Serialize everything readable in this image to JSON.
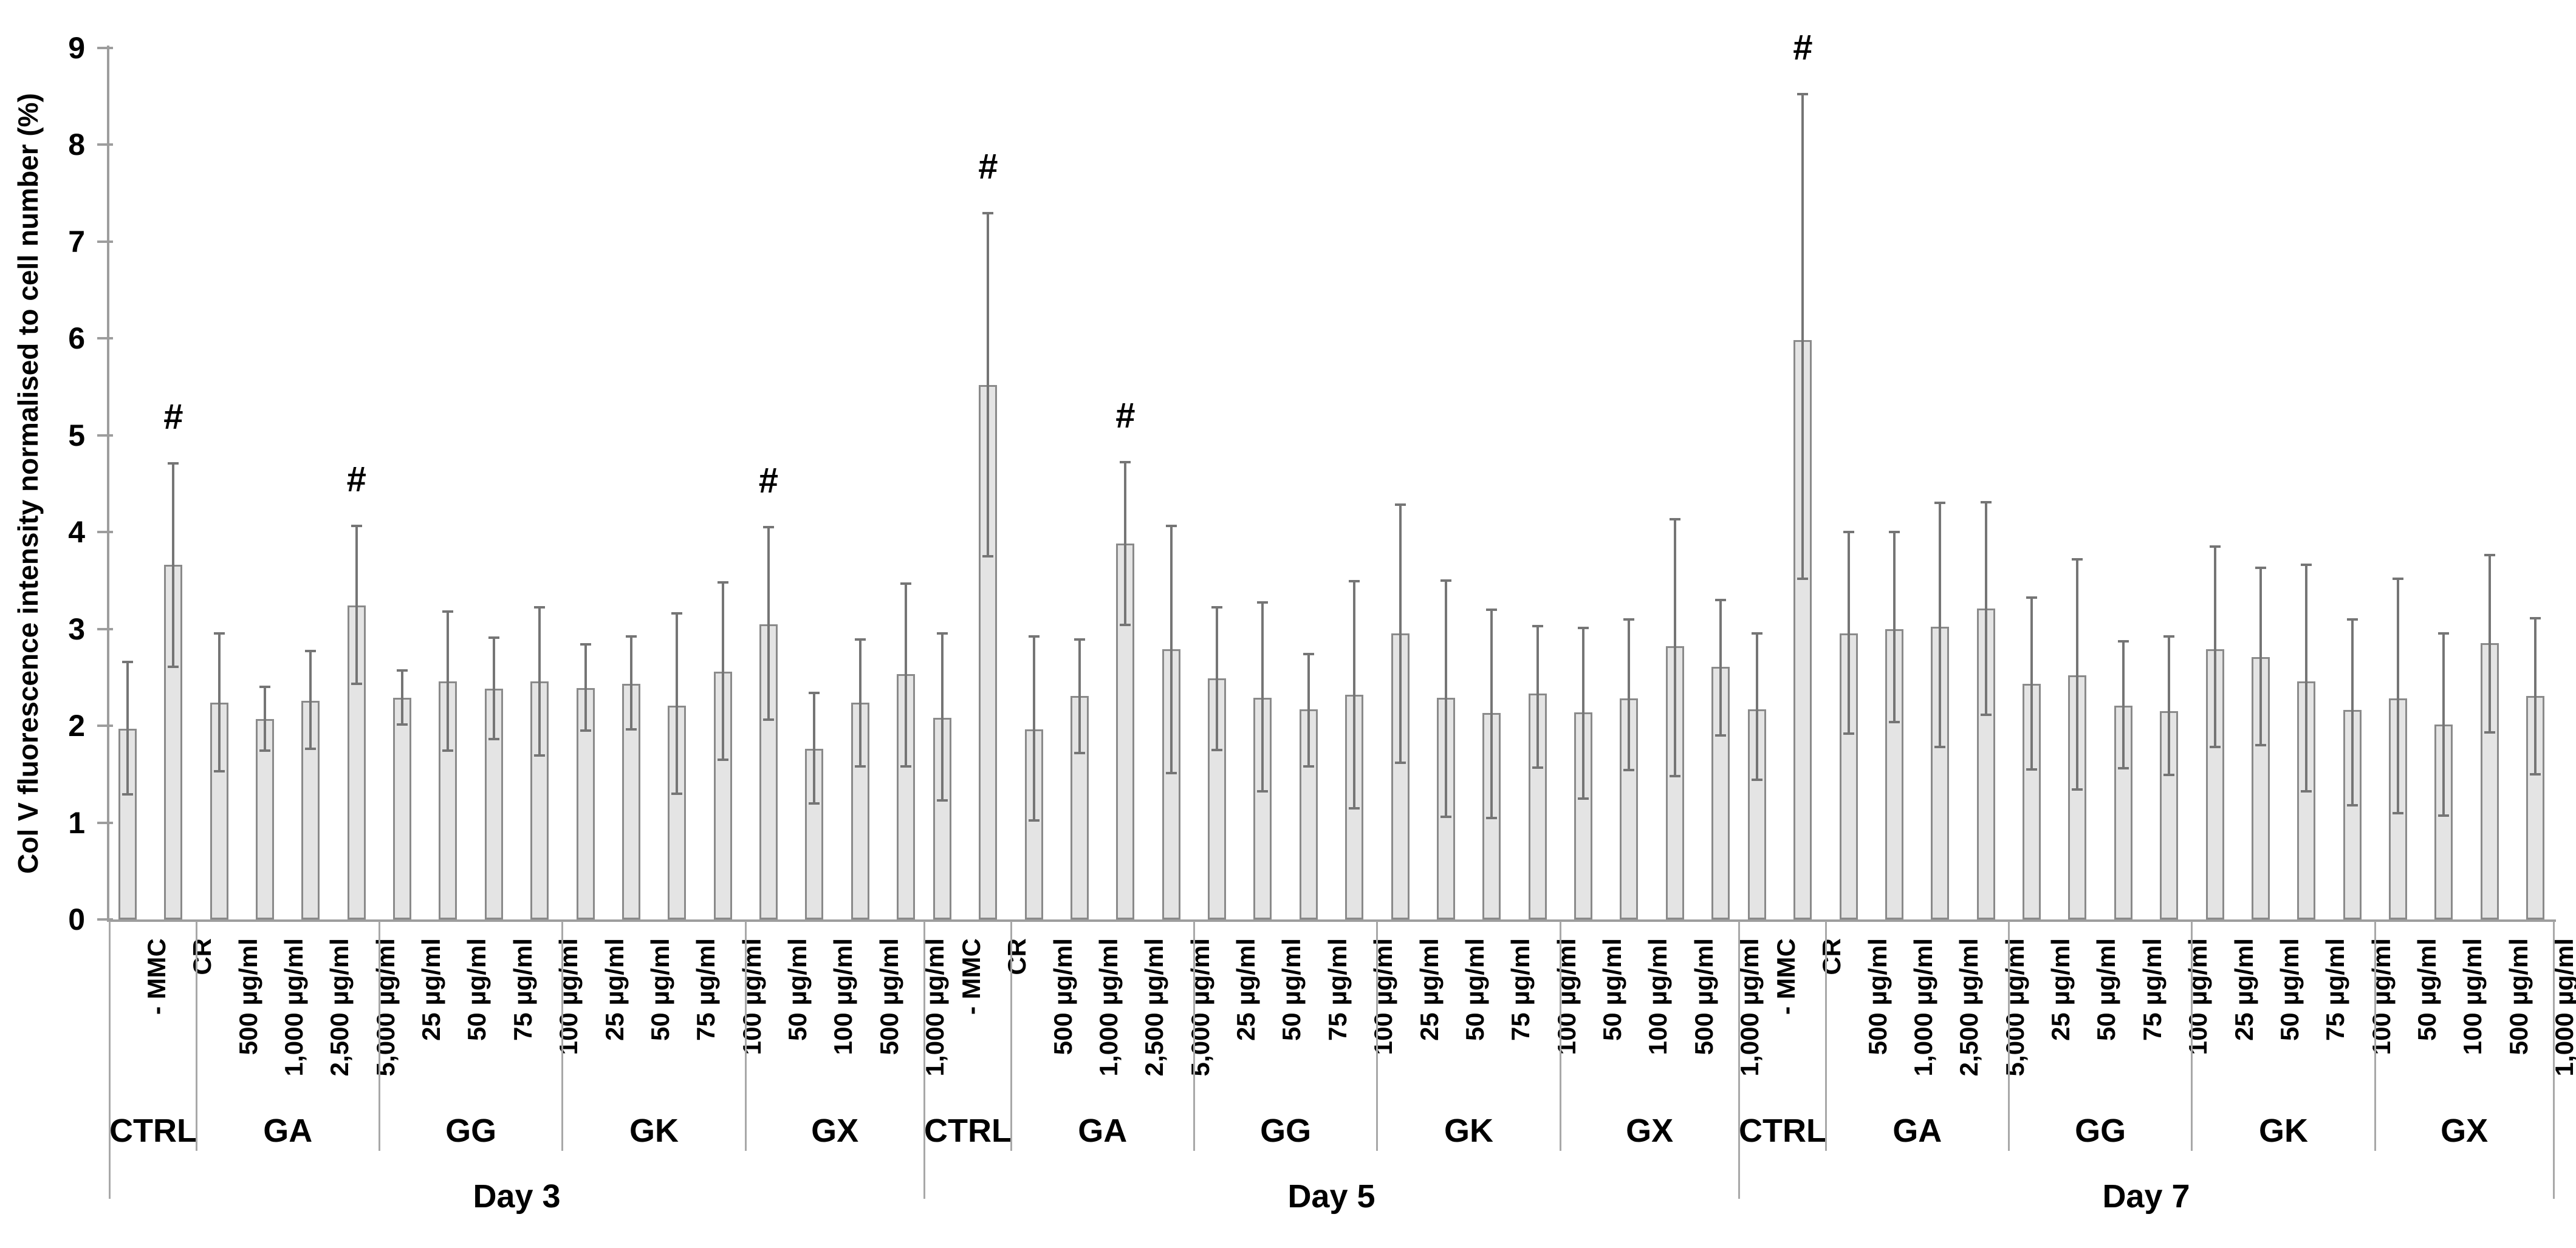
{
  "chart_data": {
    "type": "bar",
    "title": "",
    "xlabel": "",
    "grid": false,
    "legend": "none",
    "significance_symbol": "#",
    "y_axis": {
      "title": "Col V fluorescence intensity normalised to cell number (%)",
      "min": 0,
      "max": 9,
      "tick_step": 1,
      "tick_labels": [
        "0",
        "1",
        "2",
        "3",
        "4",
        "5",
        "6",
        "7",
        "8",
        "9"
      ]
    },
    "colors": {
      "bar_fill": "#e4e4e4",
      "bar_border": "#8a8a8a",
      "error_bar": "#757575",
      "axis": "#9d9d9d",
      "separator": "#a8a8a8",
      "text": "#000000"
    },
    "days": [
      {
        "label": "Day 3",
        "groups": [
          {
            "label": "CTRL",
            "bars": [
              {
                "label": "- MMC",
                "value": 1.97,
                "err_lo": 1.29,
                "err_hi": 2.66,
                "sig": false
              },
              {
                "label": "CR",
                "value": 3.66,
                "err_lo": 2.61,
                "err_hi": 4.71,
                "sig": true
              }
            ]
          },
          {
            "label": "GA",
            "bars": [
              {
                "label": "500 µg/ml",
                "value": 2.24,
                "err_lo": 1.53,
                "err_hi": 2.95,
                "sig": false
              },
              {
                "label": "1,000 µg/ml",
                "value": 2.07,
                "err_lo": 1.74,
                "err_hi": 2.4,
                "sig": false
              },
              {
                "label": "2,500 µg/ml",
                "value": 2.26,
                "err_lo": 1.76,
                "err_hi": 2.77,
                "sig": false
              },
              {
                "label": "5,000 µg/ml",
                "value": 3.24,
                "err_lo": 2.43,
                "err_hi": 4.06,
                "sig": true
              }
            ]
          },
          {
            "label": "GG",
            "bars": [
              {
                "label": "25 µg/ml",
                "value": 2.29,
                "err_lo": 2.01,
                "err_hi": 2.57,
                "sig": false
              },
              {
                "label": "50 µg/ml",
                "value": 2.46,
                "err_lo": 1.74,
                "err_hi": 3.18,
                "sig": false
              },
              {
                "label": "75 µg/ml",
                "value": 2.38,
                "err_lo": 1.86,
                "err_hi": 2.91,
                "sig": false
              },
              {
                "label": "100 µg/ml",
                "value": 2.46,
                "err_lo": 1.69,
                "err_hi": 3.22,
                "sig": false
              }
            ]
          },
          {
            "label": "GK",
            "bars": [
              {
                "label": "25 µg/ml",
                "value": 2.39,
                "err_lo": 1.95,
                "err_hi": 2.84,
                "sig": false
              },
              {
                "label": "50 µg/ml",
                "value": 2.43,
                "err_lo": 1.96,
                "err_hi": 2.92,
                "sig": false
              },
              {
                "label": "75 µg/ml",
                "value": 2.21,
                "err_lo": 1.3,
                "err_hi": 3.16,
                "sig": false
              },
              {
                "label": "100 µg/ml",
                "value": 2.56,
                "err_lo": 1.65,
                "err_hi": 3.48,
                "sig": false
              }
            ]
          },
          {
            "label": "GX",
            "bars": [
              {
                "label": "50 µg/ml",
                "value": 3.05,
                "err_lo": 2.06,
                "err_hi": 4.05,
                "sig": true
              },
              {
                "label": "100 µg/ml",
                "value": 1.76,
                "err_lo": 1.2,
                "err_hi": 2.34,
                "sig": false
              },
              {
                "label": "500 µg/ml",
                "value": 2.24,
                "err_lo": 1.58,
                "err_hi": 2.89,
                "sig": false
              },
              {
                "label": "1,000 µg/ml",
                "value": 2.53,
                "err_lo": 1.58,
                "err_hi": 3.47,
                "sig": false
              }
            ]
          }
        ]
      },
      {
        "label": "Day 5",
        "groups": [
          {
            "label": "CTRL",
            "bars": [
              {
                "label": "- MMC",
                "value": 2.08,
                "err_lo": 1.23,
                "err_hi": 2.95,
                "sig": false
              },
              {
                "label": "CR",
                "value": 5.52,
                "err_lo": 3.75,
                "err_hi": 7.29,
                "sig": true
              }
            ]
          },
          {
            "label": "GA",
            "bars": [
              {
                "label": "500 µg/ml",
                "value": 1.96,
                "err_lo": 1.02,
                "err_hi": 2.92,
                "sig": false
              },
              {
                "label": "1,000 µg/ml",
                "value": 2.31,
                "err_lo": 1.72,
                "err_hi": 2.89,
                "sig": false
              },
              {
                "label": "2,500 µg/ml",
                "value": 3.88,
                "err_lo": 3.04,
                "err_hi": 4.72,
                "sig": true
              },
              {
                "label": "5,000 µg/ml",
                "value": 2.79,
                "err_lo": 1.51,
                "err_hi": 4.06,
                "sig": false
              }
            ]
          },
          {
            "label": "GG",
            "bars": [
              {
                "label": "25 µg/ml",
                "value": 2.49,
                "err_lo": 1.75,
                "err_hi": 3.22,
                "sig": false
              },
              {
                "label": "50 µg/ml",
                "value": 2.29,
                "err_lo": 1.32,
                "err_hi": 3.27,
                "sig": false
              },
              {
                "label": "75 µg/ml",
                "value": 2.17,
                "err_lo": 1.58,
                "err_hi": 2.74,
                "sig": false
              },
              {
                "label": "100 µg/ml",
                "value": 2.32,
                "err_lo": 1.15,
                "err_hi": 3.49,
                "sig": false
              }
            ]
          },
          {
            "label": "GK",
            "bars": [
              {
                "label": "25 µg/ml",
                "value": 2.95,
                "err_lo": 1.62,
                "err_hi": 4.28,
                "sig": false
              },
              {
                "label": "50 µg/ml",
                "value": 2.29,
                "err_lo": 1.06,
                "err_hi": 3.5,
                "sig": false
              },
              {
                "label": "75 µg/ml",
                "value": 2.13,
                "err_lo": 1.05,
                "err_hi": 3.2,
                "sig": false
              },
              {
                "label": "100 µg/ml",
                "value": 2.33,
                "err_lo": 1.57,
                "err_hi": 3.03,
                "sig": false
              }
            ]
          },
          {
            "label": "GX",
            "bars": [
              {
                "label": "50 µg/ml",
                "value": 2.14,
                "err_lo": 1.25,
                "err_hi": 3.01,
                "sig": false
              },
              {
                "label": "100 µg/ml",
                "value": 2.28,
                "err_lo": 1.54,
                "err_hi": 3.1,
                "sig": false
              },
              {
                "label": "500 µg/ml",
                "value": 2.82,
                "err_lo": 1.48,
                "err_hi": 4.13,
                "sig": false
              },
              {
                "label": "1,000 µg/ml",
                "value": 2.61,
                "err_lo": 1.9,
                "err_hi": 3.3,
                "sig": false
              }
            ]
          }
        ]
      },
      {
        "label": "Day 7",
        "groups": [
          {
            "label": "CTRL",
            "bars": [
              {
                "label": "- MMC",
                "value": 2.17,
                "err_lo": 1.44,
                "err_hi": 2.95,
                "sig": false
              },
              {
                "label": "CR",
                "value": 5.98,
                "err_lo": 3.52,
                "err_hi": 8.52,
                "sig": true
              }
            ]
          },
          {
            "label": "GA",
            "bars": [
              {
                "label": "500 µg/ml",
                "value": 2.95,
                "err_lo": 1.92,
                "err_hi": 4.0,
                "sig": false
              },
              {
                "label": "1,000 µg/ml",
                "value": 3.0,
                "err_lo": 2.04,
                "err_hi": 4.0,
                "sig": false
              },
              {
                "label": "2,500 µg/ml",
                "value": 3.02,
                "err_lo": 1.78,
                "err_hi": 4.3,
                "sig": false
              },
              {
                "label": "5,000 µg/ml",
                "value": 3.21,
                "err_lo": 2.11,
                "err_hi": 4.31,
                "sig": false
              }
            ]
          },
          {
            "label": "GG",
            "bars": [
              {
                "label": "25 µg/ml",
                "value": 2.43,
                "err_lo": 1.55,
                "err_hi": 3.32,
                "sig": false
              },
              {
                "label": "50 µg/ml",
                "value": 2.52,
                "err_lo": 1.34,
                "err_hi": 3.72,
                "sig": false
              },
              {
                "label": "75 µg/ml",
                "value": 2.21,
                "err_lo": 1.56,
                "err_hi": 2.87,
                "sig": false
              },
              {
                "label": "100 µg/ml",
                "value": 2.15,
                "err_lo": 1.49,
                "err_hi": 2.92,
                "sig": false
              }
            ]
          },
          {
            "label": "GK",
            "bars": [
              {
                "label": "25 µg/ml",
                "value": 2.79,
                "err_lo": 1.78,
                "err_hi": 3.85,
                "sig": false
              },
              {
                "label": "50 µg/ml",
                "value": 2.71,
                "err_lo": 1.8,
                "err_hi": 3.63,
                "sig": false
              },
              {
                "label": "75 µg/ml",
                "value": 2.46,
                "err_lo": 1.32,
                "err_hi": 3.66,
                "sig": false
              },
              {
                "label": "100 µg/ml",
                "value": 2.16,
                "err_lo": 1.18,
                "err_hi": 3.1,
                "sig": false
              }
            ]
          },
          {
            "label": "GX",
            "bars": [
              {
                "label": "50 µg/ml",
                "value": 2.28,
                "err_lo": 1.1,
                "err_hi": 3.52,
                "sig": false
              },
              {
                "label": "100 µg/ml",
                "value": 2.01,
                "err_lo": 1.07,
                "err_hi": 2.95,
                "sig": false
              },
              {
                "label": "500 µg/ml",
                "value": 2.85,
                "err_lo": 1.93,
                "err_hi": 3.76,
                "sig": false
              },
              {
                "label": "1,000 µg/ml",
                "value": 2.31,
                "err_lo": 1.5,
                "err_hi": 3.11,
                "sig": false
              }
            ]
          }
        ]
      }
    ]
  }
}
